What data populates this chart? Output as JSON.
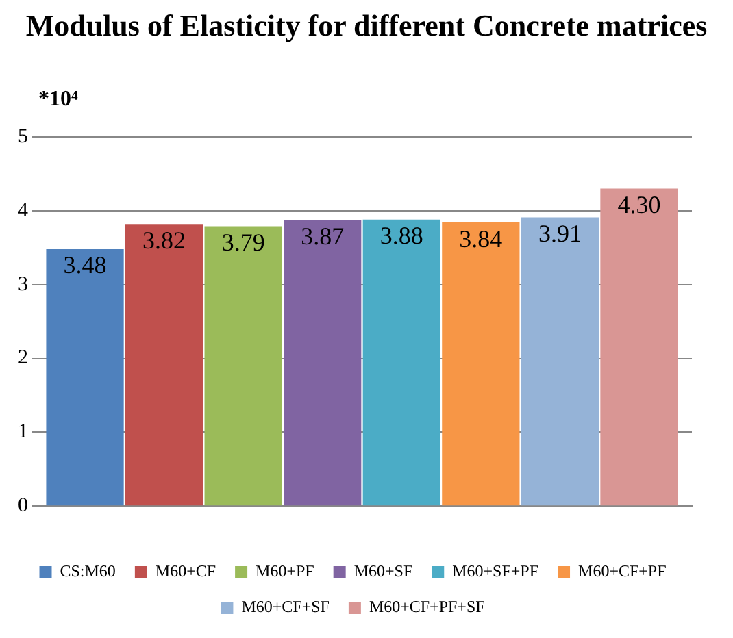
{
  "chart_data": {
    "type": "bar",
    "title": "Modulus of Elasticity for different Concrete matrices",
    "ylabel": "*10⁴",
    "categories": [
      null
    ],
    "series": [
      {
        "name": "CS:M60",
        "color": "#4f81bd",
        "values": [
          3.48
        ],
        "value_labels": [
          "3.48"
        ]
      },
      {
        "name": "M60+CF",
        "color": "#c0504d",
        "values": [
          3.82
        ],
        "value_labels": [
          "3.82"
        ]
      },
      {
        "name": "M60+PF",
        "color": "#9bbb59",
        "values": [
          3.79
        ],
        "value_labels": [
          "3.79"
        ]
      },
      {
        "name": "M60+SF",
        "color": "#8064a2",
        "values": [
          3.87
        ],
        "value_labels": [
          "3.87"
        ]
      },
      {
        "name": "M60+SF+PF",
        "color": "#4bacc6",
        "values": [
          3.88
        ],
        "value_labels": [
          "3.88"
        ]
      },
      {
        "name": "M60+CF+PF",
        "color": "#f79646",
        "values": [
          3.84
        ],
        "value_labels": [
          "3.84"
        ]
      },
      {
        "name": "M60+CF+SF",
        "color": "#95b3d7",
        "values": [
          3.91
        ],
        "value_labels": [
          "3.91"
        ]
      },
      {
        "name": "M60+CF+PF+SF",
        "color": "#d99694",
        "values": [
          4.3
        ],
        "value_labels": [
          "4.30"
        ]
      }
    ],
    "ylim": [
      0,
      5
    ],
    "yticks": [
      0,
      1,
      2,
      3,
      4,
      5
    ],
    "grid": "y",
    "legend": "bottom"
  }
}
